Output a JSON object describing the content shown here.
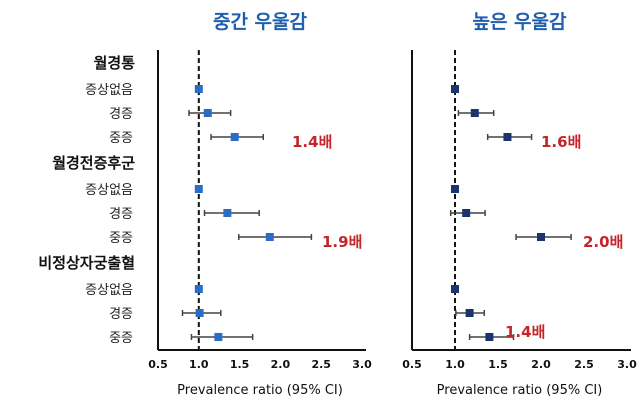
{
  "chart_data": [
    {
      "type": "forest",
      "title": "중간 우울감",
      "xlabel": "Prevalence ratio (95% CI)",
      "xlim": [
        0.5,
        3.0
      ],
      "xticks": [
        "0.5",
        "1.0",
        "1.5",
        "2.0",
        "2.5",
        "3.0"
      ],
      "reference_line": 1.0,
      "marker_color": "#2b6cc4",
      "groups": [
        {
          "name": "월경통",
          "rows": [
            {
              "label": "증상없음",
              "pr": 1.0,
              "lo": 1.0,
              "hi": 1.0
            },
            {
              "label": "경증",
              "pr": 1.11,
              "lo": 0.88,
              "hi": 1.39
            },
            {
              "label": "중증",
              "pr": 1.44,
              "lo": 1.15,
              "hi": 1.79
            }
          ],
          "annotation": "1.4배"
        },
        {
          "name": "월경전증후군",
          "rows": [
            {
              "label": "증상없음",
              "pr": 1.0,
              "lo": 1.0,
              "hi": 1.0
            },
            {
              "label": "경증",
              "pr": 1.35,
              "lo": 1.07,
              "hi": 1.74
            },
            {
              "label": "중증",
              "pr": 1.87,
              "lo": 1.49,
              "hi": 2.38
            }
          ],
          "annotation": "1.9배"
        },
        {
          "name": "비정상자궁출혈",
          "rows": [
            {
              "label": "증상없음",
              "pr": 1.0,
              "lo": 1.0,
              "hi": 1.0
            },
            {
              "label": "경증",
              "pr": 1.01,
              "lo": 0.8,
              "hi": 1.27
            },
            {
              "label": "중증",
              "pr": 1.24,
              "lo": 0.91,
              "hi": 1.66
            }
          ],
          "annotation": ""
        }
      ]
    },
    {
      "type": "forest",
      "title": "높은 우울감",
      "xlabel": "Prevalence ratio (95% CI)",
      "xlim": [
        0.5,
        3.0
      ],
      "xticks": [
        "0.5",
        "1.0",
        "1.5",
        "2.0",
        "2.5",
        "3.0"
      ],
      "reference_line": 1.0,
      "marker_color": "#1b3470",
      "groups": [
        {
          "name": "월경통",
          "rows": [
            {
              "label": "증상없음",
              "pr": 1.0,
              "lo": 1.0,
              "hi": 1.0
            },
            {
              "label": "경증",
              "pr": 1.23,
              "lo": 1.04,
              "hi": 1.45
            },
            {
              "label": "중증",
              "pr": 1.61,
              "lo": 1.38,
              "hi": 1.89
            }
          ],
          "annotation": "1.6배"
        },
        {
          "name": "월경전증후군",
          "rows": [
            {
              "label": "증상없음",
              "pr": 1.0,
              "lo": 1.0,
              "hi": 1.0
            },
            {
              "label": "경증",
              "pr": 1.13,
              "lo": 0.95,
              "hi": 1.35
            },
            {
              "label": "중증",
              "pr": 2.0,
              "lo": 1.71,
              "hi": 2.35
            }
          ],
          "annotation": "2.0배"
        },
        {
          "name": "비정상자궁출혈",
          "rows": [
            {
              "label": "증상없음",
              "pr": 1.0,
              "lo": 1.0,
              "hi": 1.0
            },
            {
              "label": "경증",
              "pr": 1.17,
              "lo": 1.01,
              "hi": 1.34
            },
            {
              "label": "중증",
              "pr": 1.4,
              "lo": 1.17,
              "hi": 1.68
            }
          ],
          "annotation": "1.4배"
        }
      ]
    }
  ],
  "colors": {
    "title": "#1f5fae",
    "annotation": "#c3252b"
  }
}
